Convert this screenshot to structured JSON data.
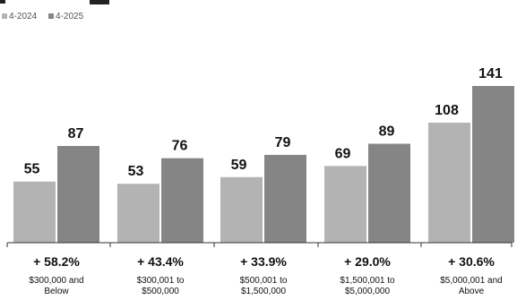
{
  "chart_data": {
    "type": "bar",
    "title": "",
    "categories": [
      "$300,000 and Below",
      "$300,001 to $500,000",
      "$500,001 to $1,500,000",
      "$1,500,001 to $5,000,000",
      "$5,000,001 and Above"
    ],
    "category_lines": [
      [
        "$300,000 and",
        "Below"
      ],
      [
        "$300,001 to",
        "$500,000"
      ],
      [
        "$500,001 to",
        "$1,500,000"
      ],
      [
        "$1,500,001 to",
        "$5,000,000"
      ],
      [
        "$5,000,001 and",
        "Above"
      ]
    ],
    "series": [
      {
        "name": "4-2024",
        "values": [
          55,
          53,
          59,
          69,
          108
        ],
        "color": "#b3b3b3"
      },
      {
        "name": "4-2025",
        "values": [
          87,
          76,
          79,
          89,
          141
        ],
        "color": "#858585"
      }
    ],
    "value_labels": [
      [
        "55",
        "87"
      ],
      [
        "53",
        "76"
      ],
      [
        "59",
        "79"
      ],
      [
        "69",
        "89"
      ],
      [
        "108",
        "141"
      ]
    ],
    "change_labels": [
      "+ 58.2%",
      "+ 43.4%",
      "+ 33.9%",
      "+ 29.0%",
      "+ 30.6%"
    ],
    "ylim": [
      0,
      141
    ],
    "grid": false,
    "legend_position": "top-left",
    "xlabel": "",
    "ylabel": ""
  }
}
